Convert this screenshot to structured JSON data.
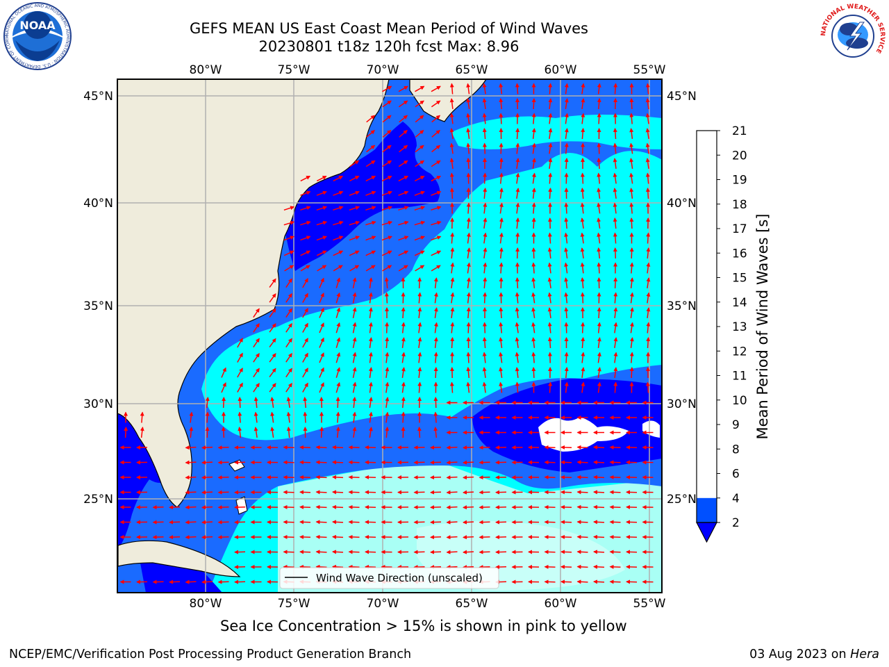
{
  "header": {
    "title_line1": "GEFS MEAN US East Coast Mean Period of Wind Waves",
    "title_line2": "20230801 t18z 120h fcst   Max: 8.96"
  },
  "logos": {
    "left": "NOAA",
    "left_ring_text": "NATIONAL OCEANIC AND ATMOSPHERIC ADMINISTRATION · U.S. DEPARTMENT OF COMMERCE ·",
    "right_ring_text": "NATIONAL WEATHER SERVICE"
  },
  "map": {
    "lon_labels": [
      "80°W",
      "75°W",
      "70°W",
      "65°W",
      "60°W",
      "55°W"
    ],
    "lat_labels": [
      "45°N",
      "40°N",
      "35°N",
      "30°N",
      "25°N"
    ],
    "legend_label": "Wind Wave Direction (unscaled)",
    "colors": {
      "land": "#efecdc",
      "band_2_4": "#0000ff",
      "band_4_6": "#1a6bff",
      "band_6_8": "#00ffff",
      "band_8_9": "#a9fff5",
      "arrow": "#ff0000",
      "grid": "#b0b0b0"
    }
  },
  "colorbar": {
    "label": "Mean Period of Wind Waves [s]",
    "ticks": [
      "2",
      "4",
      "6",
      "8",
      "9",
      "10",
      "11",
      "12",
      "13",
      "14",
      "15",
      "16",
      "17",
      "18",
      "19",
      "20",
      "21"
    ],
    "colors": [
      "#0050ff",
      "#00c8ff",
      "#3cffff",
      "#aafff0",
      "#50f078",
      "#00d200",
      "#50dc00",
      "#a0e600",
      "#c8f000",
      "#e6f000",
      "#ffff00",
      "#ffe600",
      "#ffb400",
      "#ff8c00",
      "#ff5000",
      "#ff2800",
      "#ff0000"
    ]
  },
  "notes": {
    "sea_ice": "Sea Ice Concentration > 15% is shown in pink to yellow",
    "footer_left": "NCEP/EMC/Verification Post Processing Product Generation Branch",
    "footer_date": "03 Aug 2023 on",
    "footer_machine": "Hera"
  }
}
